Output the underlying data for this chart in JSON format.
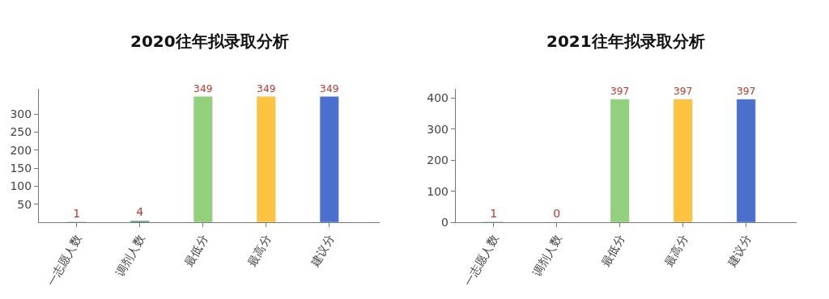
{
  "chart_data": [
    {
      "type": "bar",
      "title": "2020往年拟录取分析",
      "categories": [
        "一志愿人数",
        "调剂人数",
        "最低分",
        "最高分",
        "建议分"
      ],
      "values": [
        1,
        4,
        349,
        349,
        349
      ],
      "colors": [
        "#3c8a6e",
        "#3c8a6e",
        "#93d07c",
        "#fbc33f",
        "#4a6fcf"
      ],
      "ylim": [
        0,
        370
      ],
      "yticks": [
        50,
        100,
        150,
        200,
        250,
        300
      ],
      "data_labels": true
    },
    {
      "type": "bar",
      "title": "2021往年拟录取分析",
      "categories": [
        "一志愿人数",
        "调剂人数",
        "最低分",
        "最高分",
        "建议分"
      ],
      "values": [
        1,
        0,
        397,
        397,
        397
      ],
      "colors": [
        "#3c8a6e",
        null,
        "#93d07c",
        "#fbc33f",
        "#4a6fcf"
      ],
      "ylim": [
        0,
        430
      ],
      "yticks": [
        0,
        100,
        200,
        300,
        400
      ],
      "data_labels": true
    }
  ]
}
